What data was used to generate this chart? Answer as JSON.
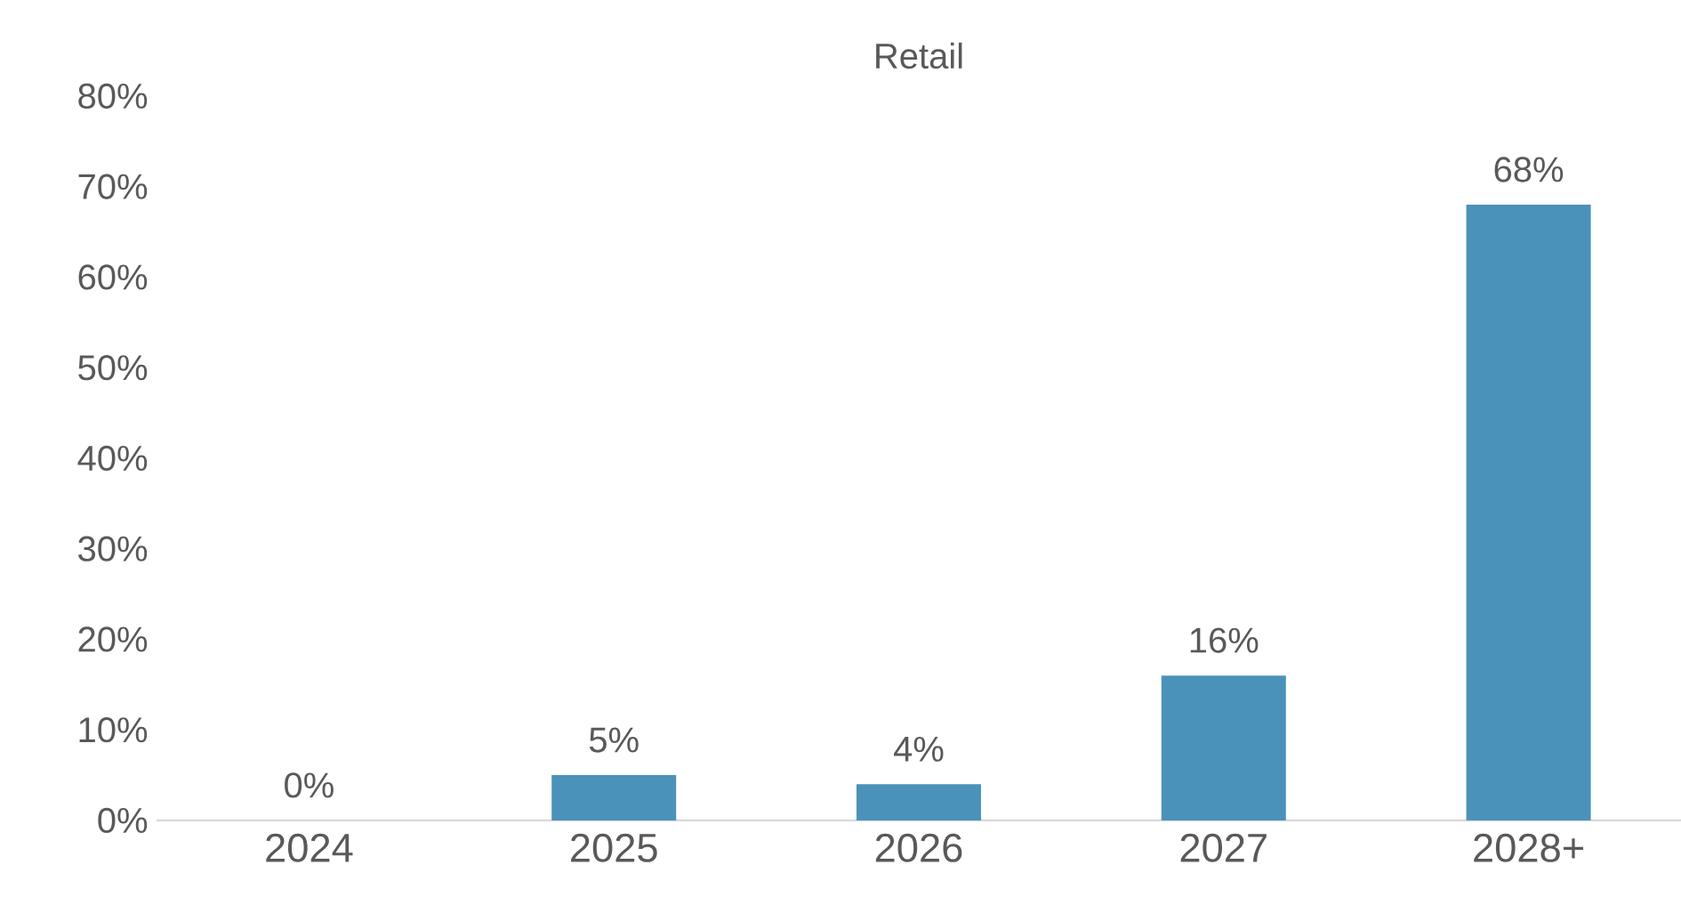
{
  "chart_data": {
    "type": "bar",
    "title": "Retail",
    "categories": [
      "2024",
      "2025",
      "2026",
      "2027",
      "2028+"
    ],
    "values": [
      0,
      5,
      4,
      16,
      68
    ],
    "value_labels": [
      "0%",
      "5%",
      "4%",
      "16%",
      "68%"
    ],
    "color": "#4a92b9",
    "ylim": [
      0,
      80
    ],
    "yticks": [
      {
        "value": 0,
        "label": "0%"
      },
      {
        "value": 10,
        "label": "10%"
      },
      {
        "value": 20,
        "label": "20%"
      },
      {
        "value": 30,
        "label": "30%"
      },
      {
        "value": 40,
        "label": "40%"
      },
      {
        "value": 50,
        "label": "50%"
      },
      {
        "value": 60,
        "label": "60%"
      },
      {
        "value": 70,
        "label": "70%"
      },
      {
        "value": 80,
        "label": "80%"
      }
    ],
    "grid": false
  }
}
